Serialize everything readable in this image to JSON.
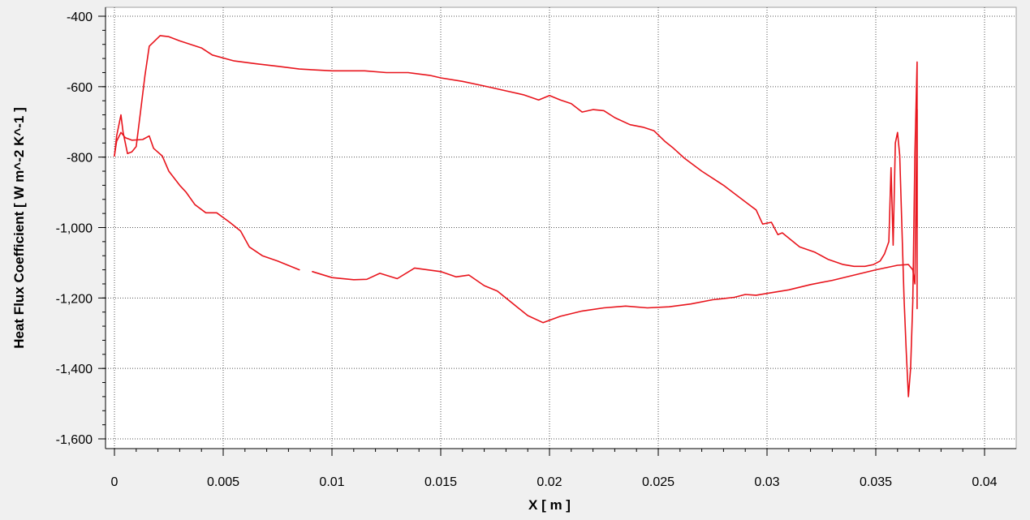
{
  "chart_data": {
    "type": "line",
    "xlabel": "X [ m ]",
    "ylabel": "Heat Flux Coefficient [ W m^-2 K^-1 ]",
    "xlim": [
      0,
      0.04
    ],
    "ylim": [
      -1600,
      -400
    ],
    "grid": true,
    "x_ticks": [
      0,
      0.005,
      0.01,
      0.015,
      0.02,
      0.025,
      0.03,
      0.035,
      0.04
    ],
    "x_tick_labels": [
      "0",
      "0.005",
      "0.01",
      "0.015",
      "0.02",
      "0.025",
      "0.03",
      "0.035",
      "0.04"
    ],
    "y_ticks": [
      -400,
      -600,
      -800,
      -1000,
      -1200,
      -1400,
      -1600
    ],
    "y_tick_labels": [
      "-400",
      "-600",
      "-800",
      "-1,000",
      "-1,200",
      "-1,400",
      "-1,600"
    ],
    "series_color": "#e8141c",
    "series": [
      {
        "values": [
          [
            0.0,
            -797
          ],
          [
            0.0001,
            -740
          ],
          [
            0.0003,
            -680
          ],
          [
            0.0004,
            -730
          ],
          [
            0.0006,
            -790
          ],
          [
            0.0008,
            -785
          ],
          [
            0.001,
            -770
          ],
          [
            0.0012,
            -670
          ],
          [
            0.0014,
            -570
          ],
          [
            0.0016,
            -485
          ],
          [
            0.0021,
            -455
          ],
          [
            0.0025,
            -458
          ],
          [
            0.003,
            -470
          ],
          [
            0.004,
            -490
          ],
          [
            0.0045,
            -510
          ],
          [
            0.0055,
            -527
          ],
          [
            0.0065,
            -535
          ],
          [
            0.0075,
            -542
          ],
          [
            0.0085,
            -550
          ],
          [
            0.01,
            -555
          ],
          [
            0.0115,
            -555
          ],
          [
            0.0125,
            -560
          ],
          [
            0.0135,
            -560
          ],
          [
            0.0145,
            -568
          ],
          [
            0.015,
            -575
          ],
          [
            0.016,
            -585
          ],
          [
            0.017,
            -598
          ],
          [
            0.018,
            -612
          ],
          [
            0.0188,
            -623
          ],
          [
            0.0195,
            -638
          ],
          [
            0.02,
            -625
          ],
          [
            0.0205,
            -638
          ],
          [
            0.021,
            -648
          ],
          [
            0.0215,
            -672
          ],
          [
            0.022,
            -665
          ],
          [
            0.0225,
            -668
          ],
          [
            0.023,
            -688
          ],
          [
            0.0237,
            -708
          ],
          [
            0.0243,
            -715
          ],
          [
            0.0248,
            -725
          ],
          [
            0.0253,
            -755
          ],
          [
            0.0257,
            -775
          ],
          [
            0.0262,
            -803
          ],
          [
            0.027,
            -840
          ],
          [
            0.028,
            -880
          ],
          [
            0.029,
            -927
          ],
          [
            0.0295,
            -950
          ],
          [
            0.0298,
            -990
          ],
          [
            0.0302,
            -985
          ],
          [
            0.0305,
            -1020
          ],
          [
            0.0307,
            -1015
          ],
          [
            0.031,
            -1030
          ],
          [
            0.0315,
            -1055
          ],
          [
            0.0322,
            -1070
          ],
          [
            0.0328,
            -1090
          ],
          [
            0.0335,
            -1105
          ],
          [
            0.034,
            -1110
          ],
          [
            0.0345,
            -1110
          ],
          [
            0.0349,
            -1105
          ],
          [
            0.0352,
            -1095
          ],
          [
            0.0354,
            -1075
          ],
          [
            0.0356,
            -1040
          ],
          [
            0.0357,
            -830
          ],
          [
            0.0358,
            -1050
          ],
          [
            0.0359,
            -760
          ],
          [
            0.036,
            -730
          ],
          [
            0.0361,
            -795
          ],
          [
            0.0362,
            -1000
          ],
          [
            0.0363,
            -1200
          ],
          [
            0.0364,
            -1350
          ],
          [
            0.0365,
            -1480
          ],
          [
            0.0366,
            -1400
          ],
          [
            0.0367,
            -1210
          ],
          [
            0.0368,
            -790
          ],
          [
            0.0369,
            -530
          ],
          [
            0.0369,
            -1230
          ]
        ]
      },
      {
        "values": [
          [
            0.0,
            -795
          ],
          [
            0.0001,
            -755
          ],
          [
            0.0003,
            -730
          ],
          [
            0.0005,
            -745
          ],
          [
            0.0008,
            -752
          ],
          [
            0.0013,
            -750
          ],
          [
            0.0016,
            -740
          ],
          [
            0.0018,
            -775
          ],
          [
            0.0022,
            -797
          ],
          [
            0.0025,
            -840
          ],
          [
            0.003,
            -880
          ],
          [
            0.0033,
            -900
          ],
          [
            0.0037,
            -935
          ],
          [
            0.0042,
            -958
          ],
          [
            0.0047,
            -958
          ],
          [
            0.0053,
            -985
          ],
          [
            0.0058,
            -1010
          ],
          [
            0.0062,
            -1055
          ],
          [
            0.0068,
            -1080
          ],
          [
            0.0075,
            -1095
          ],
          [
            0.0085,
            -1120
          ],
          null,
          [
            0.0091,
            -1125
          ],
          [
            0.01,
            -1142
          ],
          [
            0.011,
            -1148
          ],
          [
            0.0116,
            -1147
          ],
          [
            0.0122,
            -1130
          ],
          [
            0.013,
            -1145
          ],
          [
            0.0138,
            -1115
          ],
          [
            0.015,
            -1125
          ],
          [
            0.0157,
            -1140
          ],
          [
            0.0163,
            -1135
          ],
          [
            0.017,
            -1165
          ],
          [
            0.0176,
            -1180
          ],
          [
            0.0185,
            -1225
          ],
          [
            0.019,
            -1250
          ],
          [
            0.0197,
            -1270
          ],
          [
            0.0205,
            -1252
          ],
          [
            0.0215,
            -1237
          ],
          [
            0.0225,
            -1228
          ],
          [
            0.0235,
            -1223
          ],
          [
            0.0245,
            -1228
          ],
          [
            0.0255,
            -1225
          ],
          [
            0.0265,
            -1217
          ],
          [
            0.0275,
            -1205
          ],
          [
            0.0285,
            -1198
          ],
          [
            0.029,
            -1190
          ],
          [
            0.0295,
            -1192
          ],
          [
            0.03,
            -1187
          ],
          [
            0.031,
            -1177
          ],
          [
            0.032,
            -1162
          ],
          [
            0.033,
            -1150
          ],
          [
            0.034,
            -1135
          ],
          [
            0.035,
            -1120
          ],
          [
            0.036,
            -1107
          ],
          [
            0.0365,
            -1105
          ],
          [
            0.0367,
            -1120
          ],
          [
            0.0368,
            -1160
          ],
          [
            0.0369,
            -665
          ],
          [
            0.0369,
            -1000
          ]
        ]
      }
    ]
  }
}
